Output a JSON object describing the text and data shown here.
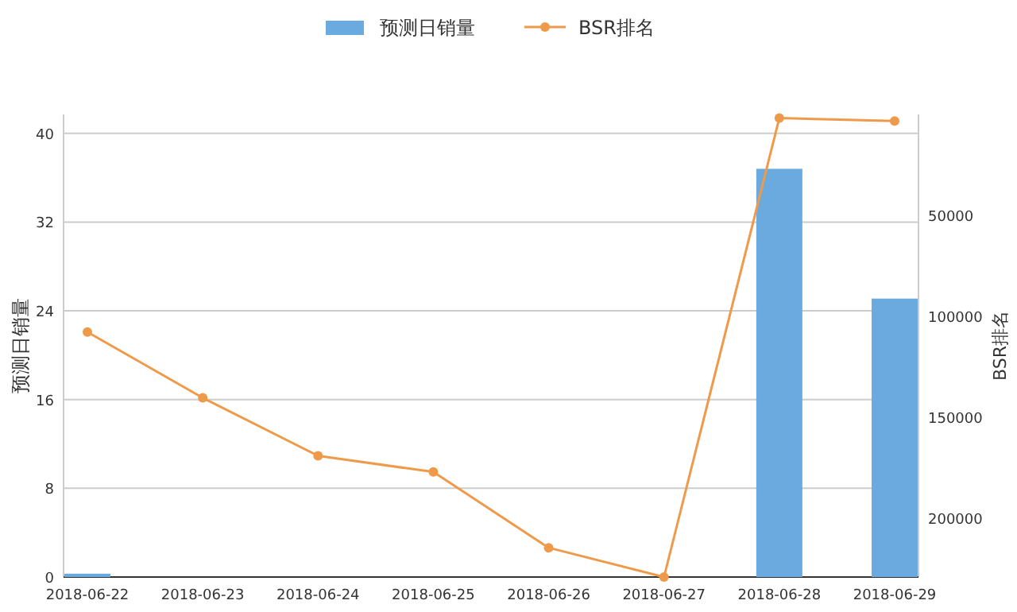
{
  "chart_data": {
    "type": "bar",
    "categories": [
      "2018-06-22",
      "2018-06-23",
      "2018-06-24",
      "2018-06-25",
      "2018-06-26",
      "2018-06-27",
      "2018-06-28",
      "2018-06-29"
    ],
    "series": [
      {
        "name": "预测日销量",
        "color": "#6aaade",
        "values": [
          0.3,
          0,
          0,
          0,
          0,
          0,
          36.8,
          25.1
        ]
      },
      {
        "name": "BSR排名",
        "type": "line",
        "axis": "y2",
        "color": "#ef9a4a",
        "marker": "circle",
        "values": [
          107700,
          140300,
          169000,
          177000,
          214500,
          229000,
          1800,
          3200
        ]
      }
    ],
    "ylabel": "预测日销量",
    "y2label": "BSR排名",
    "ylim": [
      0,
      41.7
    ],
    "yticks": [
      0,
      8,
      16,
      24,
      32,
      40
    ],
    "y2lim": [
      229000,
      0
    ],
    "y2ticks": [
      50000,
      100000,
      150000,
      200000
    ],
    "grid": "y",
    "legend": "top"
  }
}
